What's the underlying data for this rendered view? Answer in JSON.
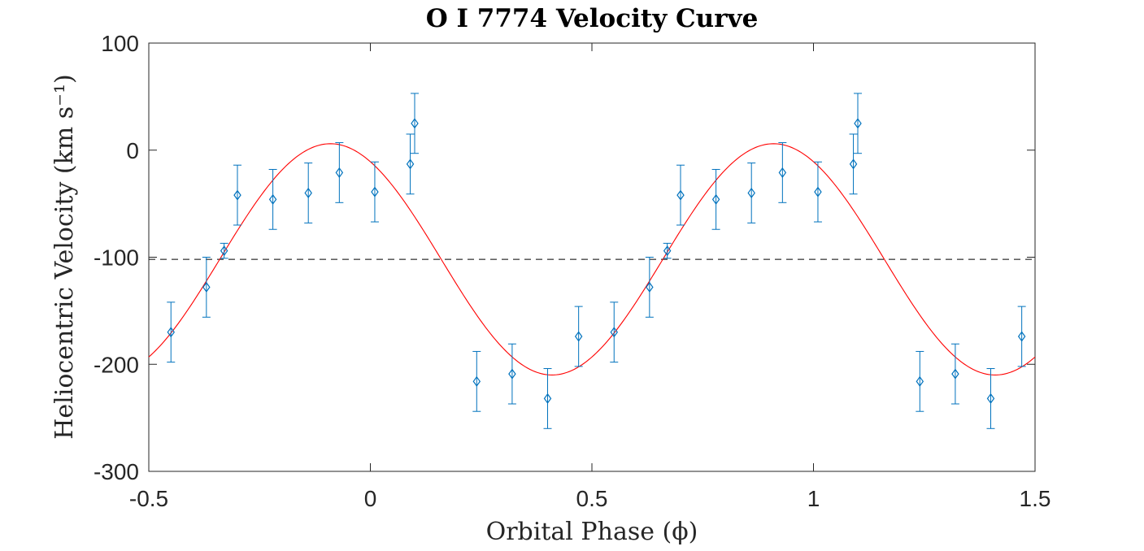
{
  "chart_data": {
    "type": "scatter",
    "title": "O I 7774 Velocity Curve",
    "xlabel": "Orbital Phase (ϕ)",
    "ylabel": "Heliocentric Velocity (km s⁻¹)",
    "xlim": [
      -0.5,
      1.5
    ],
    "ylim": [
      -300,
      100
    ],
    "x_ticks": [
      -0.5,
      0,
      0.5,
      1,
      1.5
    ],
    "x_tick_labels": [
      "-0.5",
      "0",
      "0.5",
      "1",
      "1.5"
    ],
    "y_ticks": [
      -300,
      -200,
      -100,
      0,
      100
    ],
    "y_tick_labels": [
      "-300",
      "-200",
      "-100",
      "0",
      "100"
    ],
    "grid": false,
    "colors": {
      "data": "#0072bd",
      "fit": "#ff0000",
      "reference": "#000000",
      "axes": "#262626"
    },
    "reference_line": {
      "y": -102,
      "style": "dashed"
    },
    "fit": {
      "model": "sinusoid",
      "gamma": -102,
      "amplitude": 108,
      "phase_of_max": -0.09,
      "period": 1
    },
    "series": [
      {
        "name": "O I 7774",
        "marker": "diamond",
        "error_bar": 28,
        "x": [
          -0.45,
          -0.37,
          -0.33,
          -0.3,
          -0.22,
          -0.14,
          -0.07,
          0.01,
          0.09,
          0.1,
          0.24,
          0.32,
          0.4,
          0.47,
          0.55,
          0.63,
          0.67,
          0.7,
          0.78,
          0.86,
          0.93,
          1.01,
          1.09,
          1.1,
          1.24,
          1.32,
          1.4,
          1.47
        ],
        "y": [
          -170,
          -128,
          -94,
          -42,
          -46,
          -40,
          -21,
          -39,
          -13,
          25,
          -216,
          -209,
          -232,
          -174,
          -170,
          -128,
          -94,
          -42,
          -46,
          -40,
          -21,
          -39,
          -13,
          25,
          -216,
          -209,
          -232,
          -174
        ],
        "yerr_minus": [
          28,
          28,
          7,
          28,
          28,
          28,
          28,
          28,
          28,
          28,
          28,
          28,
          28,
          28,
          28,
          28,
          7,
          28,
          28,
          28,
          28,
          28,
          28,
          28,
          28,
          28,
          28,
          28
        ],
        "yerr_plus": [
          28,
          28,
          7,
          28,
          28,
          28,
          28,
          28,
          28,
          28,
          28,
          28,
          28,
          28,
          28,
          28,
          7,
          28,
          28,
          28,
          28,
          28,
          28,
          28,
          28,
          28,
          28,
          28
        ]
      }
    ]
  }
}
